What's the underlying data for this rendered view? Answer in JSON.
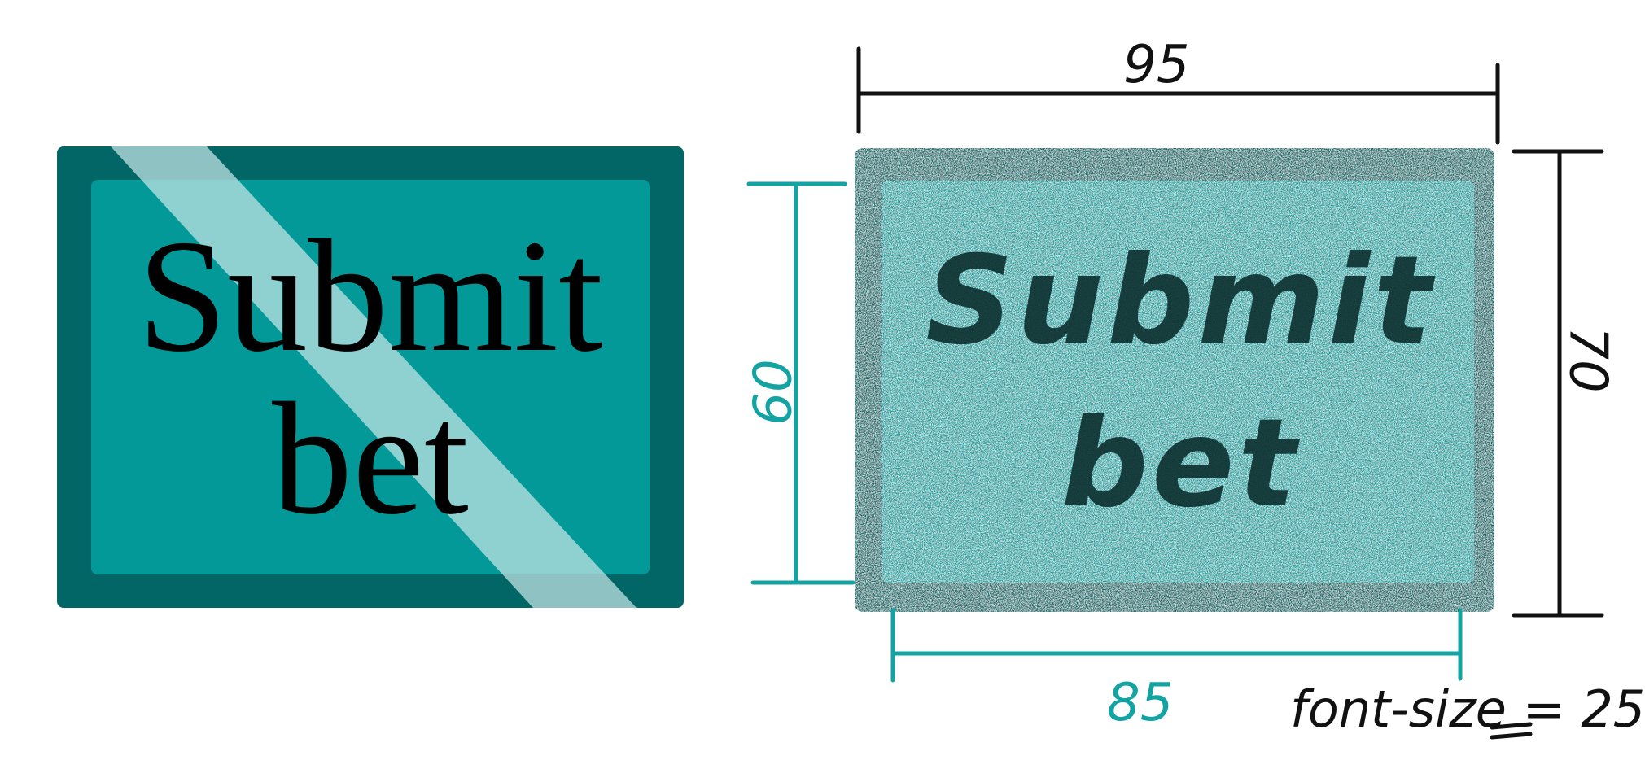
{
  "button": {
    "label": "Submit bet"
  },
  "sketch": {
    "label": "Submit bet",
    "outer_width": "95",
    "outer_height": "70",
    "inner_width": "85",
    "inner_height": "60",
    "font_note": "font-size = 25"
  },
  "colors": {
    "outer": "#036666",
    "inner": "#039999",
    "highlight": "#9fd6d6",
    "dimension_teal": "#14a3a3",
    "dimension_black": "#111111"
  }
}
